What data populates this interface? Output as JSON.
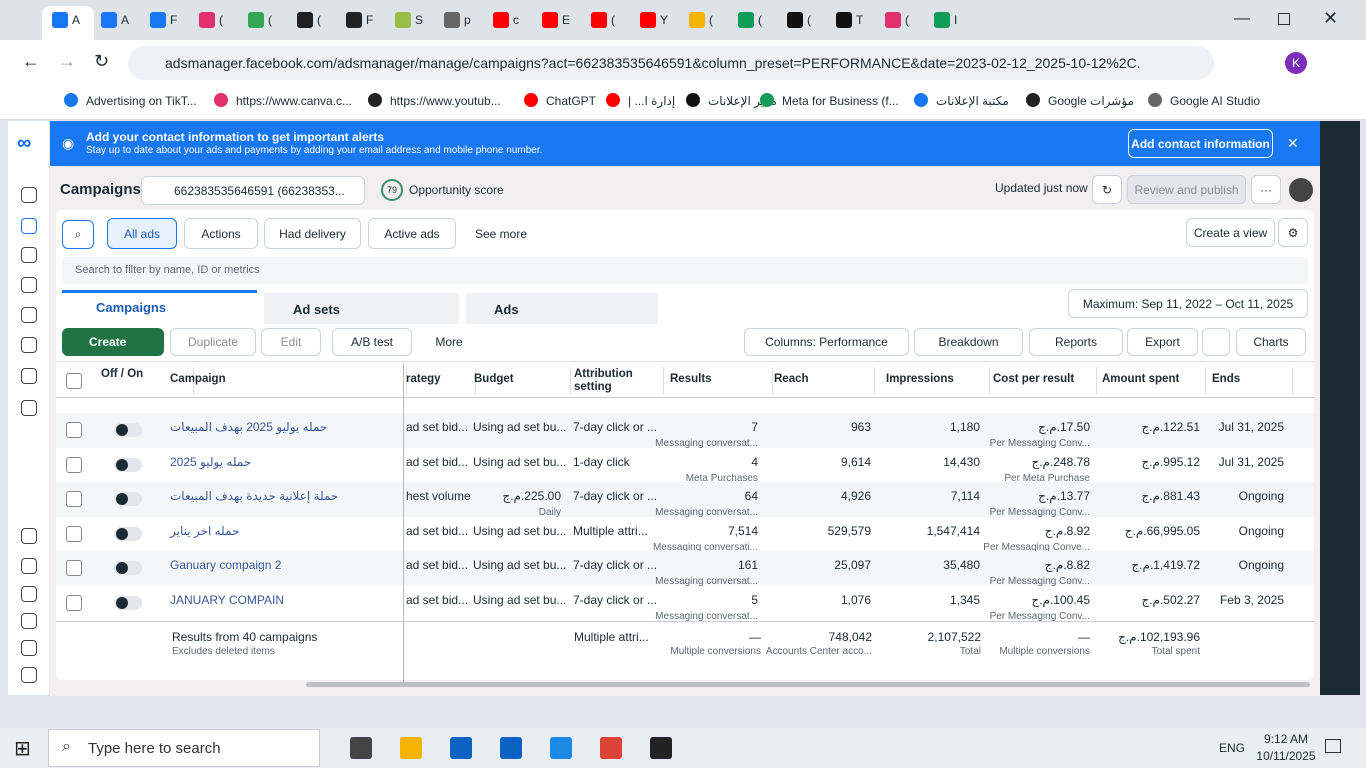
{
  "browser": {
    "tabs": [
      "A",
      "A",
      "F",
      "(",
      "(",
      "(",
      "F",
      "S",
      "p",
      "c",
      "E",
      "(",
      "Y",
      "(",
      "(",
      "(",
      "T",
      "(",
      "I"
    ],
    "address": "adsmanager.facebook.com/adsmanager/manage/campaigns?act=662383535646591&column_preset=PERFORMANCE&date=2023-02-12_2025-10-12%2C...",
    "bookmarks": [
      "Advertising on TikT...",
      "https://www.canva.c...",
      "https://www.youtub...",
      "ChatGPT",
      "إدارة ا... |",
      "مدير الإعلانات",
      "Meta for Business (f...",
      "مكتبة الإعلانات",
      "مؤشرات Google",
      "Google AI Studio"
    ]
  },
  "banner": {
    "title": "Add your contact information to get important alerts",
    "subtitle": "Stay up to date about your ads and payments by adding your email address and mobile phone number.",
    "button": "Add contact information"
  },
  "header": {
    "title": "Campaigns",
    "account": "662383535646591 (66238353...",
    "score": "79",
    "score_label": "Opportunity score",
    "updated": "Updated just now",
    "publish": "Review and publish"
  },
  "filters": {
    "buttons": [
      "All ads",
      "Actions",
      "Had delivery",
      "Active ads",
      "See more"
    ],
    "create_view": "Create a view",
    "search_placeholder": "Search to filter by name, ID or metrics"
  },
  "tabs": {
    "items": [
      "Campaigns",
      "Ad sets",
      "Ads"
    ],
    "date_range": "Maximum: Sep 11, 2022 – Oct 11, 2025"
  },
  "toolbar": {
    "left": [
      "Create",
      "Duplicate",
      "Edit",
      "A/B test",
      "More"
    ],
    "right": [
      "Columns: Performance",
      "Breakdown",
      "Reports",
      "Export",
      "Charts"
    ]
  },
  "table": {
    "columns": [
      "Off / On",
      "Campaign",
      "rategy",
      "Budget",
      "Attribution setting",
      "Results",
      "Reach",
      "Impressions",
      "Cost per result",
      "Amount spent",
      "Ends"
    ],
    "rows": [
      {
        "campaign": "حمله يوليو 2025 بهدف المبيعات",
        "strategy": "ad set bid...",
        "budget": "Using ad set bu...",
        "attribution": "7-day click or ...",
        "results": "7",
        "results_note": "Messaging conversat...",
        "reach": "963",
        "impressions": "1,180",
        "cost": "ج.م.17.50",
        "cost_note": "Per Messaging Conv...",
        "spent": "ج.م.122.51",
        "ends": "Jul 31, 2025"
      },
      {
        "campaign": "حمله يوليو 2025",
        "strategy": "ad set bid...",
        "budget": "Using ad set bu...",
        "attribution": "1-day click",
        "results": "4",
        "results_note": "Meta Purchases",
        "reach": "9,614",
        "impressions": "14,430",
        "cost": "ج.م.248.78",
        "cost_note": "Per Meta Purchase",
        "spent": "ج.م.995.12",
        "ends": "Jul 31, 2025"
      },
      {
        "campaign": "حملة إعلانية جديدة بهدف المبيعات",
        "strategy": "hest volume",
        "budget": "ج.م.225.00",
        "budget_note": "Daily",
        "attribution": "7-day click or ...",
        "results": "64",
        "results_note": "Messaging conversat...",
        "reach": "4,926",
        "impressions": "7,114",
        "cost": "ج.م.13.77",
        "cost_note": "Per Messaging Conv...",
        "spent": "ج.م.881.43",
        "ends": "Ongoing"
      },
      {
        "campaign": "حمله اخر يناير",
        "strategy": "ad set bid...",
        "budget": "Using ad set bu...",
        "attribution": "Multiple attri...",
        "results": "7,514",
        "results_note": "Messaging conversati...",
        "reach": "529,579",
        "impressions": "1,547,414",
        "cost": "ج.م.8.92",
        "cost_note": "Per Messaging Conve...",
        "spent": "ج.م.66,995.05",
        "ends": "Ongoing"
      },
      {
        "campaign": "Ganuary compaign 2",
        "strategy": "ad set bid...",
        "budget": "Using ad set bu...",
        "attribution": "7-day click or ...",
        "results": "161",
        "results_note": "Messaging conversat...",
        "reach": "25,097",
        "impressions": "35,480",
        "cost": "ج.م.8.82",
        "cost_note": "Per Messaging Conv...",
        "spent": "ج.م.1,419.72",
        "ends": "Ongoing"
      },
      {
        "campaign": "JANUARY COMPAIN",
        "strategy": "ad set bid...",
        "budget": "Using ad set bu...",
        "attribution": "7-day click or ...",
        "results": "5",
        "results_note": "Messaging conversat...",
        "reach": "1,076",
        "impressions": "1,345",
        "cost": "ج.م.100.45",
        "cost_note": "Per Messaging Conv...",
        "spent": "ج.م.502.27",
        "ends": "Feb 3, 2025"
      }
    ],
    "footer": {
      "label": "Results from 40 campaigns",
      "note": "Excludes deleted items",
      "attribution": "Multiple attri...",
      "results": "—",
      "results_note": "Multiple conversions",
      "reach": "748,042",
      "reach_note": "Accounts Center acco...",
      "impressions": "2,107,522",
      "impressions_note": "Total",
      "cost": "—",
      "cost_note": "Multiple conversions",
      "spent": "ج.م.102,193.96",
      "spent_note": "Total spent"
    }
  },
  "taskbar": {
    "search": "Type here to search",
    "lang": "ENG",
    "time": "9:12 AM",
    "date": "10/11/2025"
  }
}
